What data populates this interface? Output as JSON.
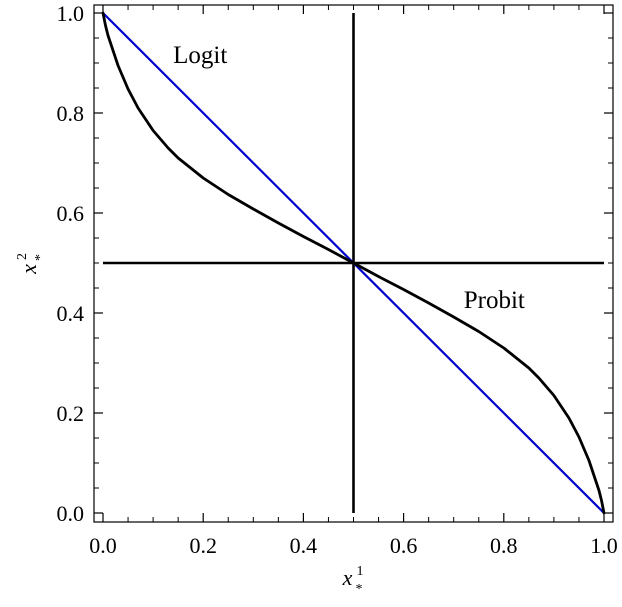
{
  "chart_data": {
    "type": "line",
    "xlabel": {
      "base": "x",
      "sub": "*",
      "sup": "1"
    },
    "ylabel": {
      "base": "x",
      "sub": "*",
      "sup": "2"
    },
    "xlim": [
      0,
      1
    ],
    "ylim": [
      0,
      1
    ],
    "xticks": [
      0.0,
      0.2,
      0.4,
      0.6,
      0.8,
      1.0
    ],
    "yticks": [
      0.0,
      0.2,
      0.4,
      0.6,
      0.8,
      1.0
    ],
    "xtick_labels": [
      "0.0",
      "0.2",
      "0.4",
      "0.6",
      "0.8",
      "1.0"
    ],
    "ytick_labels": [
      "0.0",
      "0.2",
      "0.4",
      "0.6",
      "0.8",
      "1.0"
    ],
    "grid": false,
    "reference_lines": [
      {
        "orientation": "vertical",
        "x": 0.5,
        "color": "#000000"
      },
      {
        "orientation": "horizontal",
        "y": 0.5,
        "color": "#000000"
      }
    ],
    "series": [
      {
        "color": "#0000cc",
        "x": [
          0.0,
          1.0
        ],
        "y": [
          1.0,
          0.0
        ]
      },
      {
        "color": "#000000",
        "x": [
          0.0,
          0.005,
          0.01,
          0.02,
          0.03,
          0.05,
          0.07,
          0.1,
          0.13,
          0.15,
          0.2,
          0.25,
          0.3,
          0.35,
          0.4,
          0.45,
          0.5,
          0.55,
          0.6,
          0.65,
          0.7,
          0.75,
          0.8,
          0.85,
          0.87,
          0.9,
          0.93,
          0.95,
          0.97,
          0.98,
          0.99,
          0.995,
          1.0
        ],
        "y": [
          1.0,
          0.975,
          0.955,
          0.925,
          0.895,
          0.848,
          0.81,
          0.765,
          0.73,
          0.71,
          0.67,
          0.637,
          0.608,
          0.58,
          0.553,
          0.527,
          0.5,
          0.473,
          0.447,
          0.42,
          0.392,
          0.363,
          0.33,
          0.29,
          0.27,
          0.235,
          0.19,
          0.152,
          0.105,
          0.075,
          0.045,
          0.025,
          0.0
        ]
      }
    ],
    "annotations": [
      {
        "text": "Logit",
        "x": 0.14,
        "y": 0.9
      },
      {
        "text": "Probit",
        "x": 0.72,
        "y": 0.41
      }
    ]
  }
}
